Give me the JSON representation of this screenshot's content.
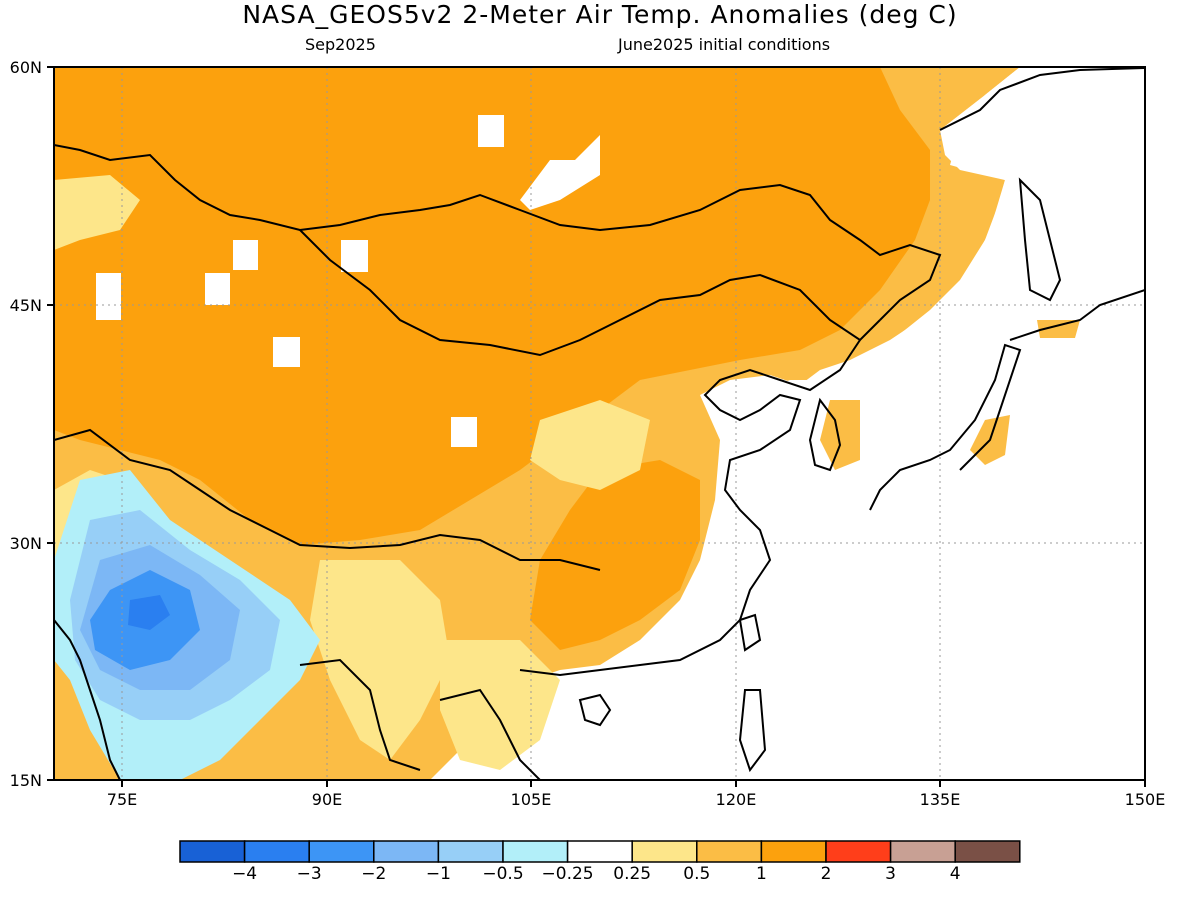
{
  "title": "NASA_GEOS5v2 2-Meter Air Temp. Anomalies (deg C)",
  "subtitle_left": "Sep2025",
  "subtitle_right": "June2025 initial conditions",
  "map": {
    "y_ticks": [
      "60N",
      "45N",
      "30N",
      "15N"
    ],
    "x_ticks": [
      "75E",
      "90E",
      "105E",
      "120E",
      "135E",
      "150E"
    ],
    "lon_range": [
      70,
      150
    ],
    "lat_range": [
      15,
      60
    ]
  },
  "colorbar": {
    "colors": [
      "#1861d6",
      "#2a7ff0",
      "#3d95f5",
      "#7cb7f5",
      "#97cff7",
      "#b2eff9",
      "#ffffff",
      "#fde68a",
      "#fbbd45",
      "#fca10d",
      "#ff3e1a",
      "#c8a094",
      "#7a5046"
    ],
    "labels": [
      "−4",
      "−3",
      "−2",
      "−1",
      "−0.5",
      "−0.25",
      "0.25",
      "0.5",
      "1",
      "2",
      "3",
      "4"
    ]
  }
}
